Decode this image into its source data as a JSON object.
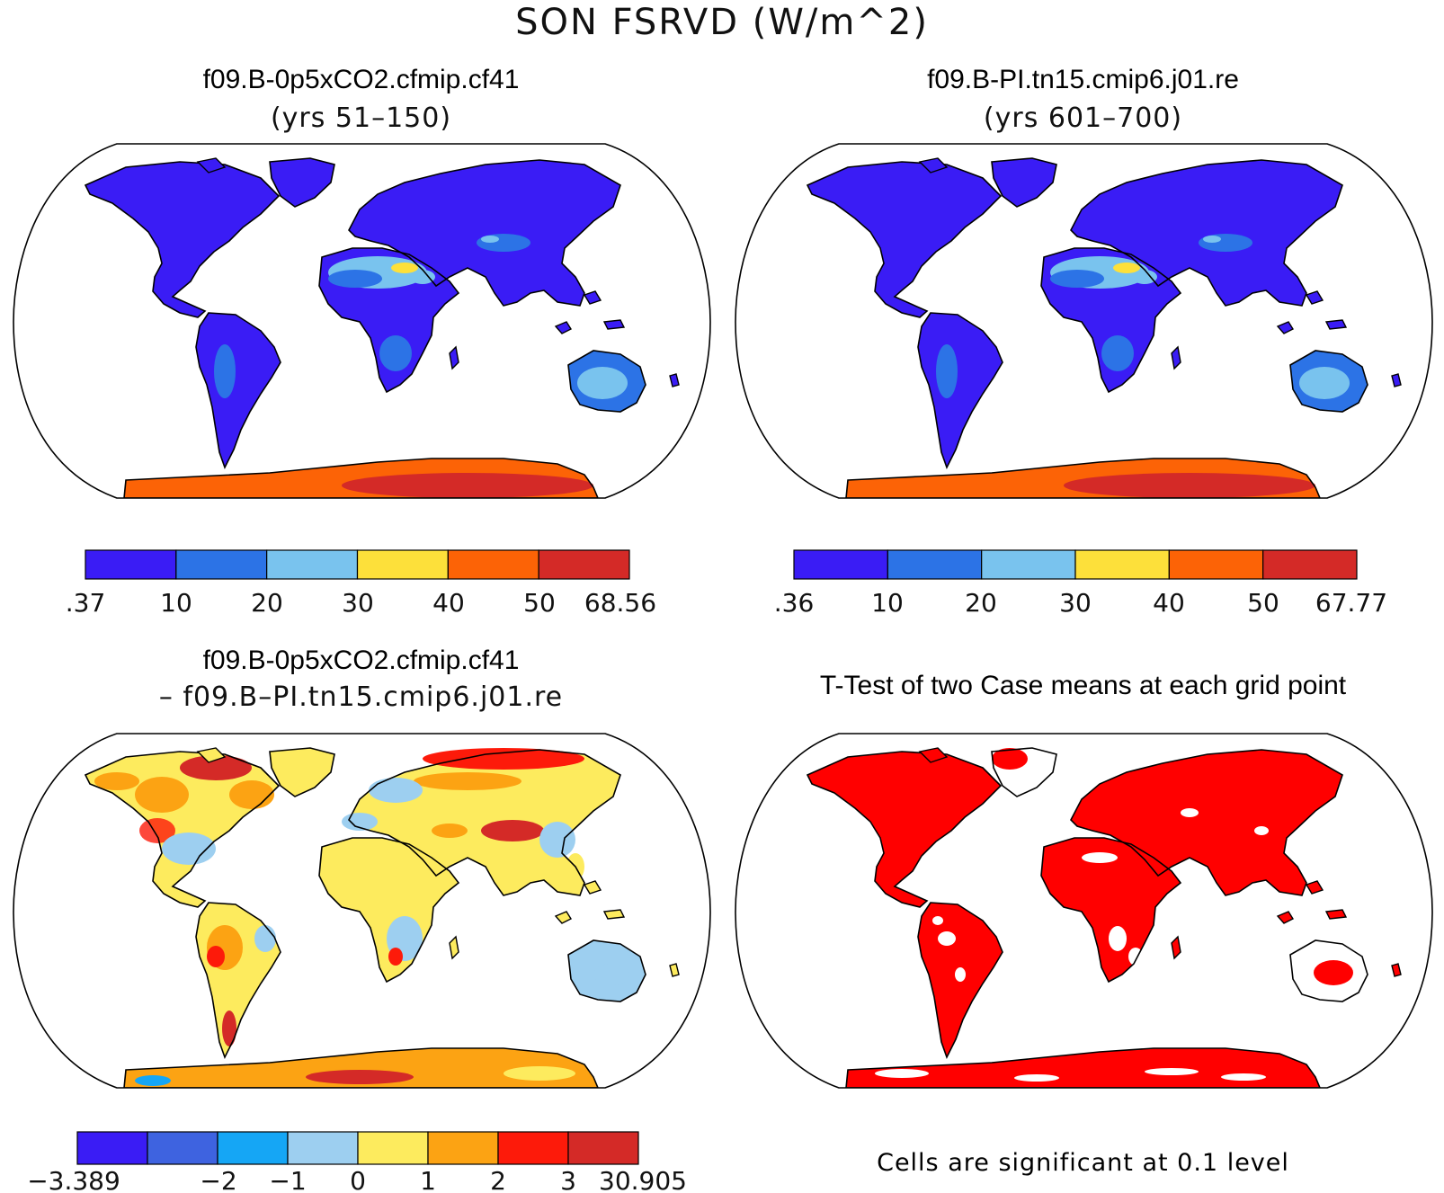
{
  "figure": {
    "title": "SON FSRVD (W/m^2)"
  },
  "panels": [
    {
      "id": "case1",
      "title": "f09.B-0p5xCO2.cfmip.cf41",
      "subtitle": "(yrs 51–150)"
    },
    {
      "id": "case2",
      "title": "f09.B-PI.tn15.cmip6.j01.re",
      "subtitle": "(yrs 601–700)"
    },
    {
      "id": "diff",
      "title": "f09.B-0p5xCO2.cfmip.cf41",
      "subtitle": "– f09.B–PI.tn15.cmip6.j01.re"
    },
    {
      "id": "ttest",
      "title": "T-Test of two Case means at each grid point",
      "subtitle": ""
    }
  ],
  "colorbars": {
    "case1": {
      "colors": [
        "#3a1cf5",
        "#2c73e6",
        "#79c3ee",
        "#fde03a",
        "#fc6306",
        "#d42a27"
      ],
      "labels": [
        ".37",
        "10",
        "20",
        "30",
        "40",
        "50",
        "68.56"
      ]
    },
    "case2": {
      "colors": [
        "#3a1cf5",
        "#2c73e6",
        "#79c3ee",
        "#fde03a",
        "#fc6306",
        "#d42a27"
      ],
      "labels": [
        ".36",
        "10",
        "20",
        "30",
        "40",
        "50",
        "67.77"
      ]
    },
    "diff": {
      "colors": [
        "#3a1cf5",
        "#3e63e0",
        "#15a6f5",
        "#9dcff0",
        "#fdeb5e",
        "#fca313",
        "#fd1a0a",
        "#d42a27"
      ],
      "labels": [
        "−3.389",
        "",
        "−2",
        "−1",
        "0",
        "1",
        "2",
        "3",
        "30.905"
      ]
    }
  },
  "ttest": {
    "significance_color": "#ff0000",
    "note": "Cells are significant at 0.1 level"
  },
  "map_colors": {
    "coast": "#000000",
    "frame": "#000000"
  }
}
